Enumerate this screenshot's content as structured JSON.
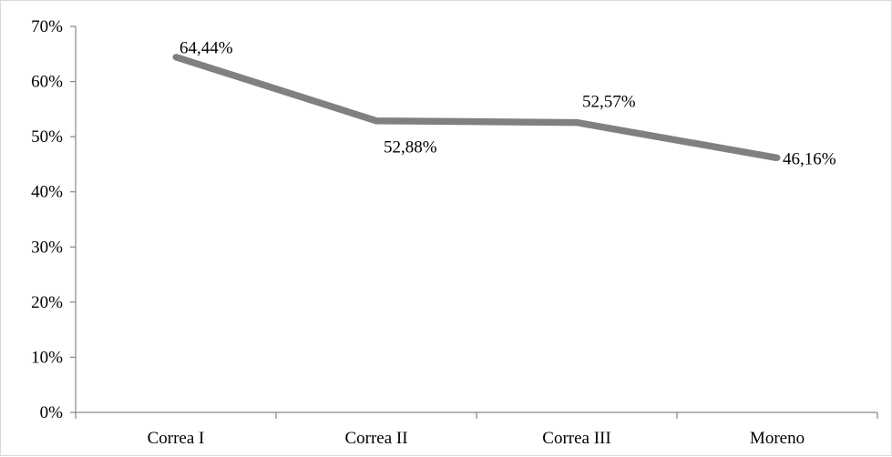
{
  "chart_data": {
    "type": "line",
    "categories": [
      "Correa I",
      "Correa II",
      "Correa III",
      "Moreno"
    ],
    "series": [
      {
        "values": [
          64.44,
          52.88,
          52.57,
          46.16
        ],
        "data_labels": [
          "64,44%",
          "52,88%",
          "52,57%",
          "46,16%"
        ],
        "color": "#808080"
      }
    ],
    "y_ticks": [
      "0%",
      "10%",
      "20%",
      "30%",
      "40%",
      "50%",
      "60%",
      "70%"
    ],
    "ylim": [
      0,
      70
    ],
    "y_step": 10,
    "grid": false,
    "legend": "none",
    "axis_color": "#868686"
  }
}
